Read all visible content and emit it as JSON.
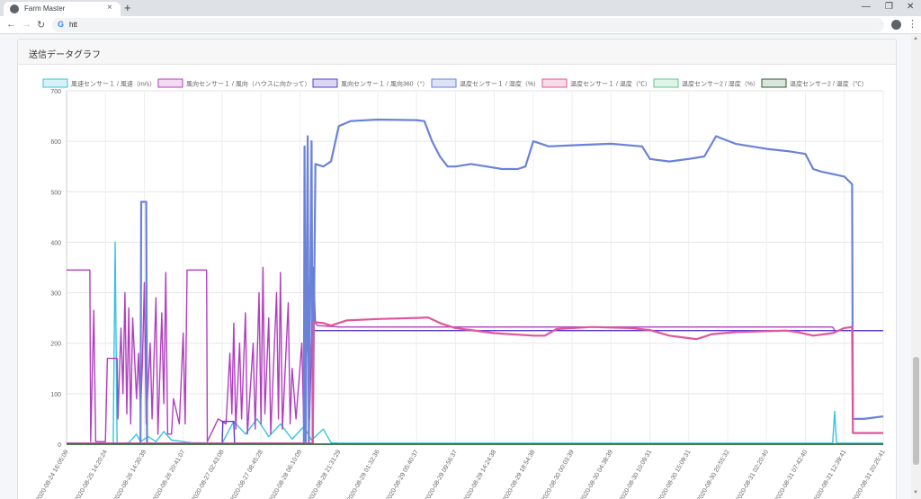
{
  "browser": {
    "tab_title": "Farm Master",
    "tab_close": "×",
    "new_tab": "+",
    "url": "htt",
    "search_engine_icon": "G",
    "win_minimize": "—",
    "win_restore": "❐",
    "win_close": "✕",
    "back": "←",
    "forward": "→",
    "reload": "↻",
    "menu": "⋮"
  },
  "card": {
    "title": "送信データグラフ"
  },
  "chart_data": {
    "type": "line",
    "ylim": [
      0,
      700
    ],
    "yticks": [
      "0",
      "100",
      "200",
      "300",
      "400",
      "500",
      "600",
      "700"
    ],
    "xticks": [
      "2020-08-24 16:05:09",
      "2020-08-25 14:20:24",
      "2020-08-26 14:30:39",
      "2020-08-26 20:41:07",
      "2020-08-27 02:43:08",
      "2020-08-27 08:45:28",
      "2020-08-28 06:10:09",
      "2020-08-28 21:31:29",
      "2020-08-29 01:32:36",
      "2020-08-29 05:40:37",
      "2020-08-29 09:56:37",
      "2020-08-29 14:24:38",
      "2020-08-29 18:54:38",
      "2020-08-30 00:03:39",
      "2020-08-30 04:38:39",
      "2020-08-30 10:09:31",
      "2020-08-30 15:09:31",
      "2020-08-30 20:55:32",
      "2020-08-31 02:20:40",
      "2020-08-31 07:42:40",
      "2020-08-31 12:39:41",
      "2020-08-31 20:25:41"
    ],
    "legend_position": "top",
    "grid": true,
    "series": [
      {
        "name": "風速センサー１ / 風速（m/s）",
        "color": "#36c3e0",
        "fill": "#d9f2f8",
        "points": [
          [
            0,
            1
          ],
          [
            1.2,
            1
          ],
          [
            1.25,
            400
          ],
          [
            1.3,
            1
          ],
          [
            1.6,
            3
          ],
          [
            1.8,
            20
          ],
          [
            1.9,
            5
          ],
          [
            2.1,
            15
          ],
          [
            2.3,
            5
          ],
          [
            2.5,
            25
          ],
          [
            2.7,
            8
          ],
          [
            3.2,
            3
          ],
          [
            4,
            2
          ],
          [
            4.3,
            45
          ],
          [
            4.6,
            20
          ],
          [
            4.9,
            50
          ],
          [
            5.2,
            15
          ],
          [
            5.5,
            40
          ],
          [
            5.8,
            10
          ],
          [
            6.1,
            35
          ],
          [
            6.3,
            8
          ],
          [
            6.6,
            30
          ],
          [
            6.8,
            3
          ],
          [
            7,
            2
          ],
          [
            10,
            2
          ],
          [
            15,
            2
          ],
          [
            19.7,
            2
          ],
          [
            19.75,
            65
          ],
          [
            19.8,
            2
          ],
          [
            21,
            2
          ]
        ]
      },
      {
        "name": "風向センサー１ / 風向（ハウスに向かって）",
        "color": "#b03fbf",
        "fill": "#f1dcf2",
        "points": [
          [
            0,
            345
          ],
          [
            0.6,
            345
          ],
          [
            0.62,
            5
          ],
          [
            0.7,
            265
          ],
          [
            0.75,
            5
          ],
          [
            1,
            5
          ],
          [
            1.05,
            170
          ],
          [
            1.3,
            170
          ],
          [
            1.32,
            50
          ],
          [
            1.4,
            230
          ],
          [
            1.45,
            100
          ],
          [
            1.5,
            300
          ],
          [
            1.55,
            60
          ],
          [
            1.6,
            270
          ],
          [
            1.65,
            40
          ],
          [
            1.7,
            250
          ],
          [
            1.8,
            90
          ],
          [
            1.85,
            180
          ],
          [
            1.9,
            60
          ],
          [
            1.95,
            160
          ],
          [
            2.0,
            320
          ],
          [
            2.05,
            40
          ],
          [
            2.15,
            200
          ],
          [
            2.2,
            50
          ],
          [
            2.3,
            290
          ],
          [
            2.35,
            20
          ],
          [
            2.45,
            260
          ],
          [
            2.5,
            80
          ],
          [
            2.55,
            340
          ],
          [
            2.6,
            20
          ],
          [
            2.7,
            20
          ],
          [
            2.75,
            90
          ],
          [
            2.9,
            40
          ],
          [
            3.0,
            220
          ],
          [
            3.05,
            40
          ],
          [
            3.1,
            345
          ],
          [
            3.6,
            345
          ],
          [
            3.62,
            5
          ],
          [
            3.9,
            50
          ],
          [
            4.1,
            40
          ],
          [
            4.2,
            180
          ],
          [
            4.25,
            60
          ],
          [
            4.3,
            240
          ],
          [
            4.35,
            30
          ],
          [
            4.45,
            200
          ],
          [
            4.5,
            50
          ],
          [
            4.6,
            260
          ],
          [
            4.65,
            20
          ],
          [
            4.8,
            200
          ],
          [
            4.85,
            30
          ],
          [
            4.95,
            300
          ],
          [
            5.0,
            40
          ],
          [
            5.05,
            350
          ],
          [
            5.1,
            60
          ],
          [
            5.2,
            250
          ],
          [
            5.25,
            20
          ],
          [
            5.4,
            300
          ],
          [
            5.45,
            50
          ],
          [
            5.5,
            340
          ],
          [
            5.55,
            30
          ],
          [
            5.7,
            280
          ],
          [
            5.75,
            40
          ],
          [
            5.8,
            150
          ],
          [
            5.9,
            50
          ],
          [
            6.05,
            200
          ],
          [
            6.1,
            30
          ],
          [
            6.2,
            230
          ],
          [
            6.25,
            50
          ],
          [
            6.35,
            350
          ],
          [
            6.4,
            240
          ],
          [
            6.45,
            235
          ],
          [
            7,
            232
          ],
          [
            10,
            232
          ],
          [
            15,
            232
          ],
          [
            19.7,
            232
          ],
          [
            19.75,
            225
          ],
          [
            21,
            225
          ]
        ]
      },
      {
        "name": "風向センサー１ / 風向360（°）",
        "color": "#5a3bd1",
        "fill": "#dcd6f5",
        "points": [
          [
            0,
            2
          ],
          [
            4,
            2
          ],
          [
            4.02,
            45
          ],
          [
            4.3,
            45
          ],
          [
            4.32,
            2
          ],
          [
            6.33,
            2
          ],
          [
            6.35,
            225
          ],
          [
            21,
            225
          ]
        ]
      },
      {
        "name": "温度センサー１ / 湿度（%）",
        "color": "#6a82d8",
        "fill": "#dde3f5",
        "points": [
          [
            0,
            1
          ],
          [
            1.9,
            1
          ],
          [
            1.92,
            480
          ],
          [
            2.05,
            480
          ],
          [
            2.07,
            1
          ],
          [
            6.1,
            1
          ],
          [
            6.12,
            590
          ],
          [
            6.15,
            1
          ],
          [
            6.2,
            610
          ],
          [
            6.23,
            1
          ],
          [
            6.3,
            600
          ],
          [
            6.33,
            1
          ],
          [
            6.4,
            555
          ],
          [
            6.6,
            550
          ],
          [
            6.8,
            560
          ],
          [
            7,
            630
          ],
          [
            7.3,
            640
          ],
          [
            8,
            643
          ],
          [
            9,
            642
          ],
          [
            9.2,
            640
          ],
          [
            9.4,
            600
          ],
          [
            9.6,
            570
          ],
          [
            9.8,
            550
          ],
          [
            10,
            550
          ],
          [
            10.4,
            555
          ],
          [
            10.8,
            550
          ],
          [
            11.2,
            545
          ],
          [
            11.6,
            545
          ],
          [
            11.8,
            550
          ],
          [
            12,
            600
          ],
          [
            12.4,
            590
          ],
          [
            13,
            592
          ],
          [
            14,
            595
          ],
          [
            14.8,
            590
          ],
          [
            15,
            565
          ],
          [
            15.5,
            560
          ],
          [
            16,
            565
          ],
          [
            16.4,
            570
          ],
          [
            16.7,
            610
          ],
          [
            17.2,
            595
          ],
          [
            18,
            585
          ],
          [
            18.6,
            580
          ],
          [
            19,
            575
          ],
          [
            19.2,
            545
          ],
          [
            19.4,
            540
          ],
          [
            19.7,
            535
          ],
          [
            20,
            530
          ],
          [
            20.2,
            515
          ],
          [
            20.22,
            50
          ],
          [
            20.5,
            50
          ],
          [
            21,
            55
          ]
        ]
      },
      {
        "name": "温度センサー１ / 温度（℃）",
        "color": "#e1569a",
        "fill": "#f8dde9",
        "points": [
          [
            0,
            1
          ],
          [
            6.33,
            1
          ],
          [
            6.35,
            242
          ],
          [
            6.6,
            240
          ],
          [
            6.8,
            235
          ],
          [
            7.2,
            245
          ],
          [
            8,
            248
          ],
          [
            9,
            250
          ],
          [
            9.3,
            251
          ],
          [
            9.6,
            240
          ],
          [
            10,
            230
          ],
          [
            11,
            220
          ],
          [
            12,
            215
          ],
          [
            12.3,
            215
          ],
          [
            12.6,
            228
          ],
          [
            13.5,
            232
          ],
          [
            14.5,
            230
          ],
          [
            15,
            226
          ],
          [
            15.5,
            215
          ],
          [
            16.2,
            208
          ],
          [
            16.6,
            218
          ],
          [
            17.2,
            222
          ],
          [
            18.5,
            225
          ],
          [
            18.8,
            222
          ],
          [
            19.2,
            215
          ],
          [
            19.7,
            220
          ],
          [
            20,
            230
          ],
          [
            20.2,
            232
          ],
          [
            20.22,
            22
          ],
          [
            21,
            22
          ]
        ]
      },
      {
        "name": "温度センサー2 / 湿度（%）",
        "color": "#5ec98a",
        "fill": "#dff4e6",
        "points": [
          [
            0,
            0
          ],
          [
            21,
            0
          ]
        ]
      },
      {
        "name": "温度センサー2 / 温度（℃）",
        "color": "#2e5a2e",
        "fill": "#dbe6db",
        "points": [
          [
            0,
            0
          ],
          [
            21,
            0
          ]
        ]
      }
    ]
  }
}
